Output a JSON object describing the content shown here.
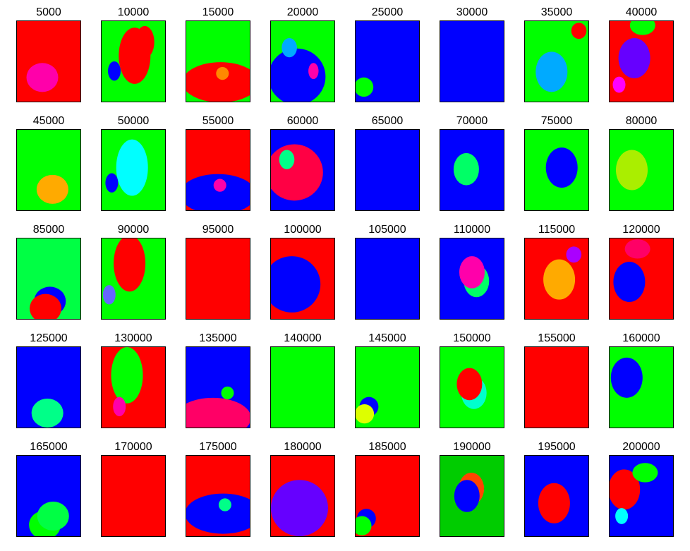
{
  "figure": {
    "panels": [
      {
        "title": "5000",
        "base": "#ff0000",
        "blobs": [
          {
            "color": "#ff00aa"
          }
        ]
      },
      {
        "title": "10000",
        "base": "#00ff00",
        "blobs": [
          {
            "color": "#ff0000"
          },
          {
            "color": "#0000ff"
          },
          {
            "color": "#ff0000"
          }
        ]
      },
      {
        "title": "15000",
        "base": "#00ff00",
        "blobs": [
          {
            "color": "#ff0000"
          },
          {
            "color": "#ff8800"
          }
        ]
      },
      {
        "title": "20000",
        "base": "#00ff00",
        "blobs": [
          {
            "color": "#0000ff"
          },
          {
            "color": "#00aaff"
          },
          {
            "color": "#ff00aa"
          }
        ]
      },
      {
        "title": "25000",
        "base": "#0000ff",
        "blobs": [
          {
            "color": "#00ff00"
          }
        ]
      },
      {
        "title": "30000",
        "base": "#0000ff",
        "blobs": []
      },
      {
        "title": "35000",
        "base": "#00ff00",
        "blobs": [
          {
            "color": "#00aaff"
          },
          {
            "color": "#ff0000"
          }
        ]
      },
      {
        "title": "40000",
        "base": "#ff0000",
        "blobs": [
          {
            "color": "#6600ff"
          },
          {
            "color": "#00ff00"
          },
          {
            "color": "#ff00ff"
          }
        ]
      },
      {
        "title": "45000",
        "base": "#00ff00",
        "blobs": [
          {
            "color": "#ffaa00"
          }
        ]
      },
      {
        "title": "50000",
        "base": "#00ff00",
        "blobs": [
          {
            "color": "#00ffff"
          },
          {
            "color": "#0000ff"
          }
        ]
      },
      {
        "title": "55000",
        "base": "#ff0000",
        "blobs": [
          {
            "color": "#0000ff"
          },
          {
            "color": "#ff00aa"
          }
        ]
      },
      {
        "title": "60000",
        "base": "#0000ff",
        "blobs": [
          {
            "color": "#ff0044"
          },
          {
            "color": "#00ff88"
          }
        ]
      },
      {
        "title": "65000",
        "base": "#0000ff",
        "blobs": []
      },
      {
        "title": "70000",
        "base": "#0000ff",
        "blobs": [
          {
            "color": "#00ff66"
          }
        ]
      },
      {
        "title": "75000",
        "base": "#00ff00",
        "blobs": [
          {
            "color": "#0000ff"
          }
        ]
      },
      {
        "title": "80000",
        "base": "#00ff00",
        "blobs": [
          {
            "color": "#aaee00"
          }
        ]
      },
      {
        "title": "85000",
        "base": "#00ff44",
        "blobs": [
          {
            "color": "#0000ff"
          },
          {
            "color": "#ff0000"
          }
        ]
      },
      {
        "title": "90000",
        "base": "#00ff00",
        "blobs": [
          {
            "color": "#ff0000"
          },
          {
            "color": "#6666ff"
          }
        ]
      },
      {
        "title": "95000",
        "base": "#ff0000",
        "blobs": []
      },
      {
        "title": "100000",
        "base": "#ff0000",
        "blobs": [
          {
            "color": "#0000ff"
          }
        ]
      },
      {
        "title": "105000",
        "base": "#0000ff",
        "blobs": []
      },
      {
        "title": "110000",
        "base": "#0000ff",
        "blobs": [
          {
            "color": "#00ff66"
          },
          {
            "color": "#ff00aa"
          }
        ]
      },
      {
        "title": "115000",
        "base": "#ff0000",
        "blobs": [
          {
            "color": "#ffaa00"
          },
          {
            "color": "#aa00ff"
          }
        ]
      },
      {
        "title": "120000",
        "base": "#ff0000",
        "blobs": [
          {
            "color": "#0000ff"
          },
          {
            "color": "#ff0066"
          }
        ]
      },
      {
        "title": "125000",
        "base": "#0000ff",
        "blobs": [
          {
            "color": "#00ff88"
          }
        ]
      },
      {
        "title": "130000",
        "base": "#ff0000",
        "blobs": [
          {
            "color": "#00ff00"
          },
          {
            "color": "#ff00aa"
          }
        ]
      },
      {
        "title": "135000",
        "base": "#0000ff",
        "blobs": [
          {
            "color": "#ff0066"
          },
          {
            "color": "#00ff00"
          }
        ]
      },
      {
        "title": "140000",
        "base": "#00ff00",
        "blobs": []
      },
      {
        "title": "145000",
        "base": "#00ff00",
        "blobs": [
          {
            "color": "#0000ff"
          },
          {
            "color": "#ddff00"
          }
        ]
      },
      {
        "title": "150000",
        "base": "#00ff00",
        "blobs": [
          {
            "color": "#00ffcc"
          },
          {
            "color": "#ff0000"
          }
        ]
      },
      {
        "title": "155000",
        "base": "#ff0000",
        "blobs": []
      },
      {
        "title": "160000",
        "base": "#00ff00",
        "blobs": [
          {
            "color": "#0000ff"
          }
        ]
      },
      {
        "title": "165000",
        "base": "#0000ff",
        "blobs": [
          {
            "color": "#00ff00"
          },
          {
            "color": "#00ff44"
          }
        ]
      },
      {
        "title": "170000",
        "base": "#ff0000",
        "blobs": []
      },
      {
        "title": "175000",
        "base": "#ff0000",
        "blobs": [
          {
            "color": "#0000ff"
          },
          {
            "color": "#00ff88"
          }
        ]
      },
      {
        "title": "180000",
        "base": "#ff0000",
        "blobs": [
          {
            "color": "#6600ff"
          }
        ]
      },
      {
        "title": "185000",
        "base": "#ff0000",
        "blobs": [
          {
            "color": "#0000ff"
          },
          {
            "color": "#00ff00"
          }
        ]
      },
      {
        "title": "190000",
        "base": "#00cc00",
        "blobs": [
          {
            "color": "#ff4400"
          },
          {
            "color": "#0000ff"
          }
        ]
      },
      {
        "title": "195000",
        "base": "#0000ff",
        "blobs": [
          {
            "color": "#ff0000"
          }
        ]
      },
      {
        "title": "200000",
        "base": "#0000ff",
        "blobs": [
          {
            "color": "#ff0000"
          },
          {
            "color": "#00ff00"
          },
          {
            "color": "#00ffff"
          }
        ]
      }
    ]
  }
}
